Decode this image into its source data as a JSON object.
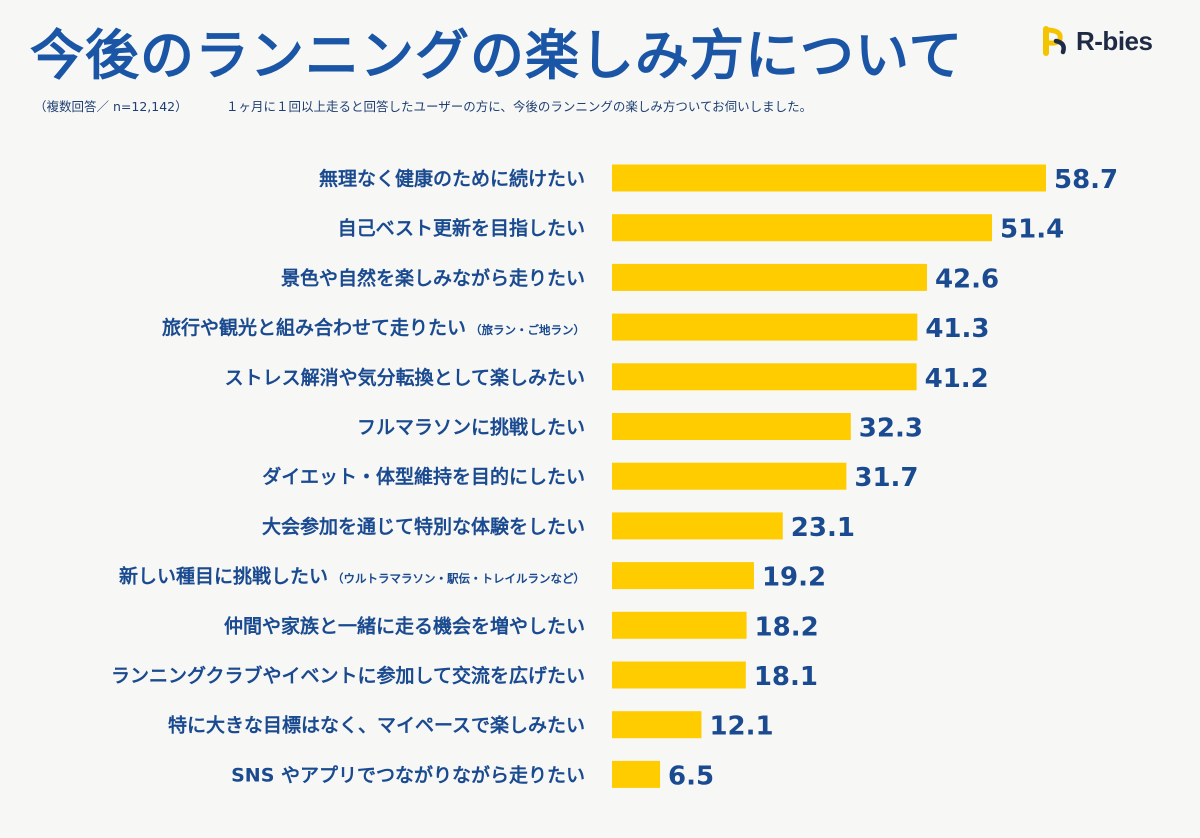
{
  "header": {
    "title": "今後のランニングの楽しみ方について",
    "note": "（複数回答／ n=12,142）",
    "description": "１ヶ月に１回以上走ると回答したユーザーの方に、今後のランニングの楽しみ方ついてお伺いしました。",
    "logo_text": "R-bies",
    "logo_icon": "rbies-logo-icon"
  },
  "colors": {
    "title": "#1a56a5",
    "label": "#1a4a8f",
    "bar": "#ffcc00",
    "value": "#1a4a8f",
    "background": "#f7f7f5"
  },
  "chart_data": {
    "type": "bar",
    "orientation": "horizontal",
    "categories": [
      {
        "label": "無理なく健康のために続けたい",
        "note": ""
      },
      {
        "label": "自己ベスト更新を目指したい",
        "note": ""
      },
      {
        "label": "景色や自然を楽しみながら走りたい",
        "note": ""
      },
      {
        "label": "旅行や観光と組み合わせて走りたい",
        "note": "（旅ラン・ご地ラン）"
      },
      {
        "label": "ストレス解消や気分転換として楽しみたい",
        "note": ""
      },
      {
        "label": "フルマラソンに挑戦したい",
        "note": ""
      },
      {
        "label": "ダイエット・体型維持を目的にしたい",
        "note": ""
      },
      {
        "label": "大会参加を通じて特別な体験をしたい",
        "note": ""
      },
      {
        "label": "新しい種目に挑戦したい",
        "note": "（ウルトラマラソン・駅伝・トレイルランなど）"
      },
      {
        "label": "仲間や家族と一緒に走る機会を増やしたい",
        "note": ""
      },
      {
        "label": "ランニングクラブやイベントに参加して交流を広げたい",
        "note": ""
      },
      {
        "label": "特に大きな目標はなく、マイペースで楽しみたい",
        "note": ""
      },
      {
        "label": "SNS やアプリでつながりながら走りたい",
        "note": ""
      }
    ],
    "values": [
      58.7,
      51.4,
      42.6,
      41.3,
      41.2,
      32.3,
      31.7,
      23.1,
      19.2,
      18.2,
      18.1,
      12.1,
      6.5
    ],
    "value_labels": [
      "58.7",
      "51.4",
      "42.6",
      "41.3",
      "41.2",
      "32.3",
      "31.7",
      "23.1",
      "19.2",
      "18.2",
      "18.1",
      "12.1",
      "6.5"
    ],
    "xlim": [
      0,
      58.7
    ],
    "grid": false,
    "legend": "none"
  }
}
